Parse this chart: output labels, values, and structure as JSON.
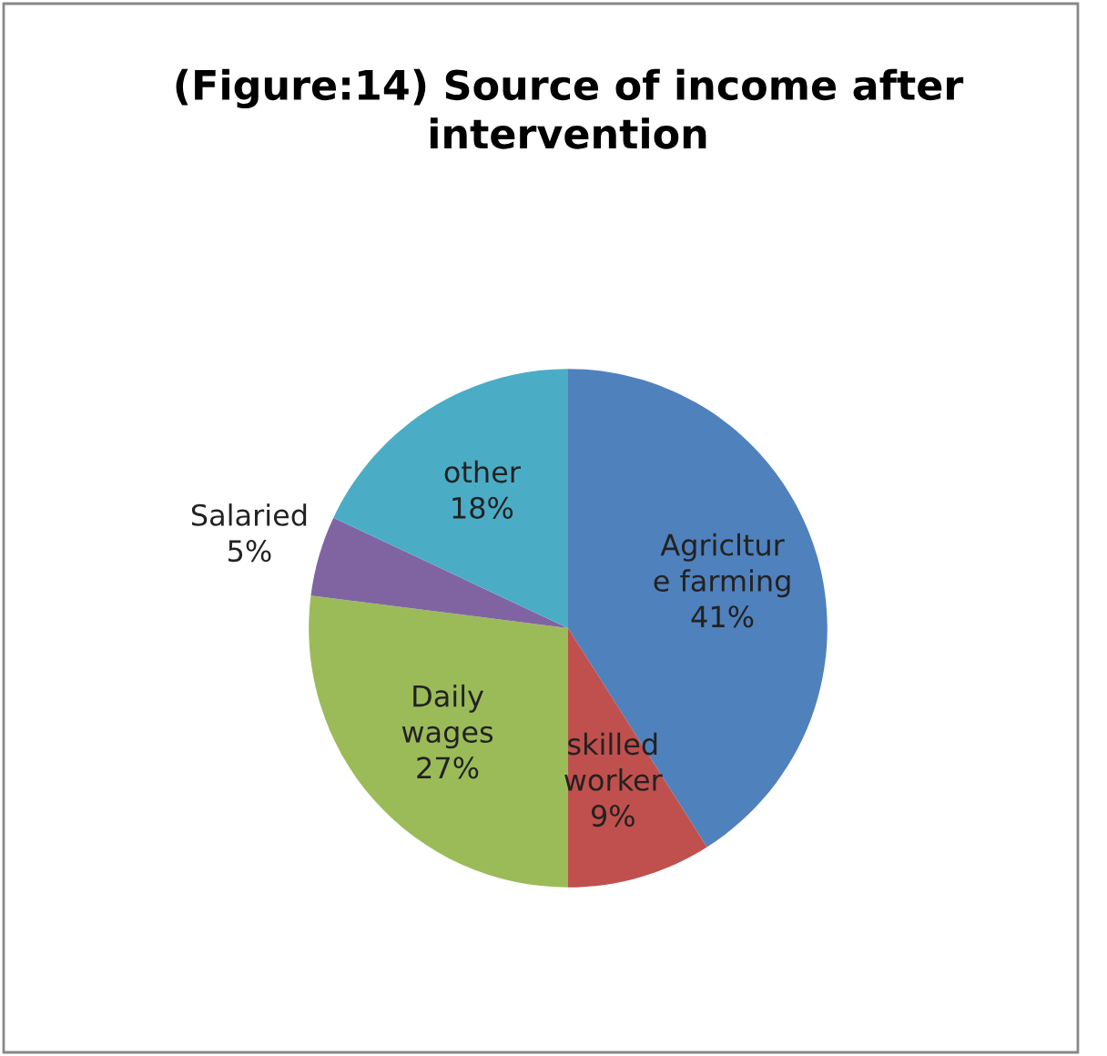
{
  "chart_data": {
    "type": "pie",
    "title": "(Figure:14) Source of income after\nintervention",
    "categories": [
      "Agricltur\ne farming",
      "skilled\nworker",
      "Daily\nwages",
      "Salaried",
      "other"
    ],
    "values": [
      41,
      9,
      27,
      5,
      18
    ],
    "value_labels": [
      "41%",
      "9%",
      "27%",
      "5%",
      "18%"
    ],
    "colors": [
      "#4f81bd",
      "#c0504d",
      "#9bbb59",
      "#8064a2",
      "#4bacc6"
    ],
    "legend": false
  }
}
